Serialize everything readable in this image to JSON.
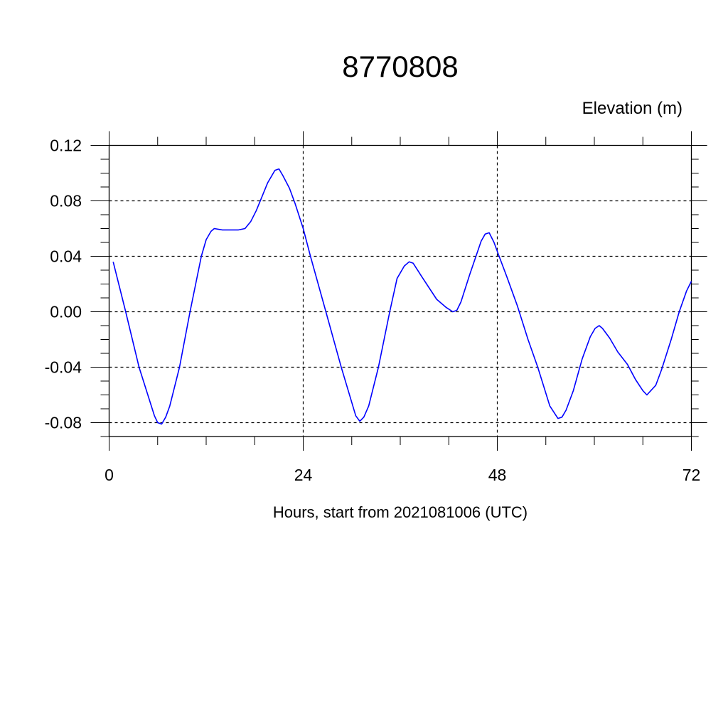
{
  "chart_data": {
    "type": "line",
    "title": "8770808",
    "ylabel": "Elevation (m)",
    "xlabel": "Hours, start from 2021081006 (UTC)",
    "xlim": [
      0,
      72
    ],
    "ylim": [
      -0.09,
      0.12
    ],
    "xticks": [
      0,
      24,
      48,
      72
    ],
    "xtick_labels": [
      "0",
      "24",
      "48",
      "72"
    ],
    "yticks": [
      -0.08,
      -0.04,
      0.0,
      0.04,
      0.08,
      0.12
    ],
    "ytick_labels": [
      "-0.08",
      "-0.04",
      "0.00",
      "0.04",
      "0.08",
      "0.12"
    ],
    "grid": true,
    "line_color": "#0000ff",
    "series": [
      {
        "x": [
          0.5,
          2,
          3.7,
          5.6,
          6,
          6.5,
          7,
          7.5,
          8.7,
          10,
          11.4,
          12,
          12.6,
          13,
          14,
          14.8,
          16,
          16.8,
          17.5,
          18.2,
          18.9,
          19.6,
          20.5,
          21,
          21.5,
          22.3,
          23,
          24,
          24.9,
          26.8,
          28.7,
          30.5,
          31,
          31.5,
          32.1,
          33.3,
          34.7,
          35.6,
          36.5,
          37.1,
          37.6,
          38.7,
          40.5,
          41.7,
          42.5,
          43,
          43.5,
          44.6,
          46,
          46.5,
          47,
          47.6,
          48.1,
          49.2,
          50.5,
          51.8,
          53,
          54.5,
          55.5,
          56,
          56.5,
          57.4,
          58.5,
          59.5,
          60.1,
          60.6,
          61,
          61.9,
          62.9,
          64.1,
          65.1,
          66,
          66.5,
          67.6,
          68.3,
          69.5,
          70.5,
          71.4,
          72
        ],
        "y": [
          0.036,
          0.001,
          -0.04,
          -0.075,
          -0.08,
          -0.081,
          -0.076,
          -0.068,
          -0.04,
          0.0,
          0.04,
          0.052,
          0.058,
          0.06,
          0.059,
          0.059,
          0.059,
          0.06,
          0.065,
          0.073,
          0.083,
          0.093,
          0.102,
          0.103,
          0.098,
          0.089,
          0.078,
          0.06,
          0.04,
          0.0,
          -0.04,
          -0.075,
          -0.079,
          -0.076,
          -0.068,
          -0.04,
          0.0,
          0.024,
          0.033,
          0.036,
          0.035,
          0.025,
          0.009,
          0.003,
          0.0,
          0.001,
          0.007,
          0.027,
          0.051,
          0.056,
          0.057,
          0.05,
          0.042,
          0.025,
          0.004,
          -0.02,
          -0.04,
          -0.068,
          -0.077,
          -0.076,
          -0.071,
          -0.057,
          -0.034,
          -0.018,
          -0.012,
          -0.01,
          -0.012,
          -0.019,
          -0.029,
          -0.038,
          -0.049,
          -0.057,
          -0.06,
          -0.053,
          -0.042,
          -0.02,
          0.0,
          0.015,
          0.022
        ]
      }
    ]
  }
}
